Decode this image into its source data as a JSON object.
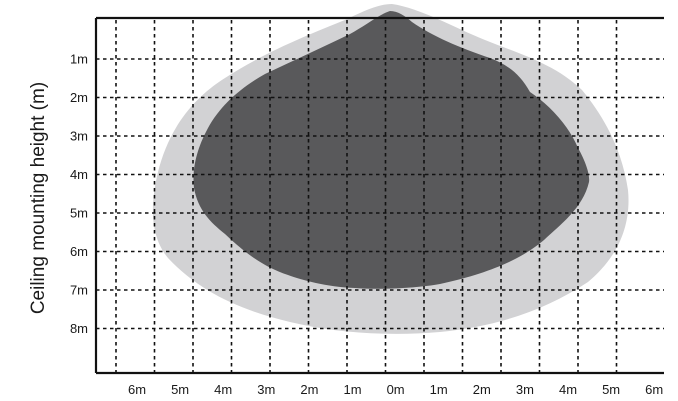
{
  "diagram": {
    "y_axis_title": "Ceiling mounting height (m)",
    "y_ticks": [
      "1m",
      "2m",
      "3m",
      "4m",
      "5m",
      "6m",
      "7m",
      "8m"
    ],
    "x_ticks": [
      "6m",
      "5m",
      "4m",
      "3m",
      "2m",
      "1m",
      "0m",
      "1m",
      "2m",
      "3m",
      "4m",
      "5m",
      "6m"
    ],
    "colors": {
      "outer_zone": "#d2d2d4",
      "inner_zone": "#59595b",
      "grid": "#111111",
      "axis": "#111111"
    }
  }
}
